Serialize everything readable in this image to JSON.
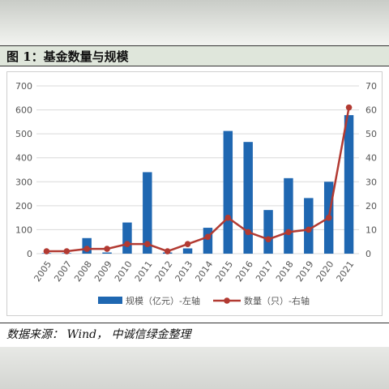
{
  "figure": {
    "title": "图 1：基金数量与规模",
    "source": "数据来源：   Wind， 中诚信绿金整理"
  },
  "chart_data": {
    "type": "bar",
    "categories": [
      "2005",
      "2007",
      "2008",
      "2009",
      "2010",
      "2011",
      "2012",
      "2013",
      "2014",
      "2015",
      "2016",
      "2017",
      "2018",
      "2019",
      "2020",
      "2021"
    ],
    "series": [
      {
        "name": "规模（亿元）-左轴",
        "kind": "bar",
        "axis": "left",
        "color": "#1f67b1",
        "values": [
          2,
          2,
          65,
          5,
          130,
          340,
          5,
          22,
          108,
          512,
          466,
          182,
          315,
          232,
          300,
          578
        ]
      },
      {
        "name": "数量（只）-右轴",
        "kind": "line",
        "axis": "right",
        "color": "#b23a32",
        "values": [
          1,
          1,
          2,
          2,
          4,
          4,
          1,
          4,
          7,
          15,
          9,
          6,
          9,
          10,
          15,
          61
        ]
      }
    ],
    "ylim_left": [
      0,
      700
    ],
    "ylim_right": [
      0,
      70
    ],
    "yticks_left": [
      "0",
      "100",
      "200",
      "300",
      "400",
      "500",
      "600",
      "700"
    ],
    "yticks_right": [
      "0",
      "10",
      "20",
      "30",
      "40",
      "50",
      "60",
      "70"
    ],
    "grid": "horizontal",
    "legend": "bottom"
  }
}
